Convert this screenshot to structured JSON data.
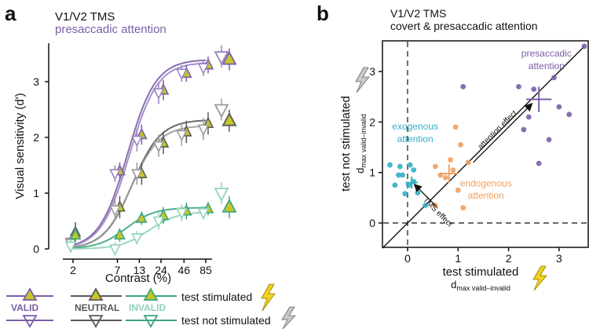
{
  "colors": {
    "purple": "#7B5EA7",
    "purple_light": "#9A84C3",
    "gray": "#5a5a5a",
    "gray_light": "#9a9a9a",
    "green": "#3aa67f",
    "green_light": "#8fd3b6",
    "yellow": "#c6c62a",
    "teal": "#35aec6",
    "orange": "#f0a060",
    "black": "#111111"
  },
  "chart_data": [
    {
      "type": "line",
      "panel_letter": "a",
      "title": "V1/V2 TMS",
      "subtitle": "presaccadic attention",
      "xlabel": "Contrast (%)",
      "ylabel": "Visual sensitivity (d')",
      "x_ticks": [
        "2",
        "7",
        "13",
        "24",
        "46",
        "85"
      ],
      "y_ticks": [
        "0",
        "1",
        "2",
        "3"
      ],
      "ylim": [
        0,
        3.8
      ],
      "x": [
        2,
        7,
        13,
        24,
        46,
        85
      ],
      "series": [
        {
          "name": "valid test stimulated",
          "condition": "valid",
          "stimulated": true,
          "values": [
            0.25,
            1.4,
            2.05,
            2.85,
            3.15,
            3.3
          ],
          "errors": [
            0.18,
            0.15,
            0.18,
            0.18,
            0.15,
            0.15
          ],
          "extra": 3.4
        },
        {
          "name": "valid test not stimulated",
          "condition": "valid",
          "stimulated": false,
          "values": [
            0.12,
            1.35,
            1.95,
            2.8,
            3.15,
            3.25
          ],
          "errors": [
            0.15,
            0.15,
            0.2,
            0.2,
            0.15,
            0.15
          ],
          "extra": 3.45
        },
        {
          "name": "neutral test stimulated",
          "condition": "neutral",
          "stimulated": true,
          "values": [
            0.3,
            0.75,
            1.35,
            1.9,
            2.1,
            2.25
          ],
          "errors": [
            0.18,
            0.2,
            0.2,
            0.2,
            0.2,
            0.2
          ],
          "extra": 2.3
        },
        {
          "name": "neutral test not stimulated",
          "condition": "neutral",
          "stimulated": false,
          "values": [
            0.1,
            0.7,
            1.35,
            1.85,
            2.05,
            2.15
          ],
          "errors": [
            0.15,
            0.2,
            0.2,
            0.2,
            0.2,
            0.2
          ],
          "extra": 2.5
        },
        {
          "name": "invalid test stimulated",
          "condition": "invalid",
          "stimulated": true,
          "values": [
            0.25,
            0.25,
            0.55,
            0.6,
            0.68,
            0.72
          ],
          "errors": [
            0.15,
            0.12,
            0.12,
            0.15,
            0.15,
            0.12
          ],
          "extra": 0.75
        },
        {
          "name": "invalid test not stimulated",
          "condition": "invalid",
          "stimulated": false,
          "values": [
            0.05,
            0.0,
            0.2,
            0.5,
            0.65,
            0.65
          ],
          "errors": [
            0.12,
            0.12,
            0.12,
            0.15,
            0.15,
            0.12
          ],
          "extra": 1.0
        }
      ],
      "legend": {
        "valid": "VALID",
        "neutral": "NEUTRAL",
        "invalid": "INVALID",
        "stimulated": "test stimulated",
        "not_stimulated": "test not stimulated"
      }
    },
    {
      "type": "scatter",
      "panel_letter": "b",
      "title": "V1/V2 TMS",
      "subtitle": "covert & presaccadic attention",
      "xlabel": "test stimulated",
      "xlabel_sub": "d",
      "xlabel_sub_small": "max",
      "xlabel_sub_rest": " valid–invalid",
      "ylabel": "test not stimulated",
      "ylabel_sub": "d",
      "ylabel_sub_small": "max",
      "ylabel_sub_rest": " valid–invalid",
      "x_ticks": [
        "0",
        "1",
        "2",
        "3"
      ],
      "y_ticks": [
        "0",
        "1",
        "2",
        "3"
      ],
      "xlim": [
        -0.5,
        3.5
      ],
      "ylim": [
        -0.5,
        3.5
      ],
      "groups": [
        {
          "name": "exogenous attention",
          "label_line1": "exogenous",
          "label_line2": "attention",
          "color_key": "teal",
          "points": [
            [
              -0.35,
              1.15
            ],
            [
              -0.15,
              1.12
            ],
            [
              0.05,
              1.15
            ],
            [
              -0.18,
              0.95
            ],
            [
              0.12,
              1.05
            ],
            [
              -0.25,
              0.75
            ],
            [
              0.02,
              0.75
            ],
            [
              0.2,
              0.6
            ],
            [
              -0.05,
              0.58
            ],
            [
              0.12,
              0.82
            ],
            [
              0.35,
              0.35
            ],
            [
              -0.1,
              0.95
            ]
          ],
          "mean": [
            0.08,
            0.8
          ],
          "mean_err": [
            0.12,
            0.12
          ]
        },
        {
          "name": "endogenous attention",
          "label_line1": "endogenous",
          "label_line2": "attention",
          "color_key": "orange",
          "points": [
            [
              0.55,
              1.12
            ],
            [
              0.65,
              0.95
            ],
            [
              0.75,
              0.9
            ],
            [
              0.9,
              1.05
            ],
            [
              1.0,
              0.65
            ],
            [
              1.05,
              1.55
            ],
            [
              1.1,
              0.3
            ],
            [
              1.2,
              1.2
            ],
            [
              0.55,
              0.35
            ],
            [
              0.95,
              1.9
            ],
            [
              0.85,
              1.25
            ]
          ],
          "mean": [
            0.82,
            0.98
          ],
          "mean_err": [
            0.18,
            0.18
          ]
        },
        {
          "name": "presaccadic attention",
          "label_line1": "presaccadic",
          "label_line2": "attention",
          "color_key": "purple",
          "points": [
            [
              1.1,
              2.7
            ],
            [
              2.2,
              2.7
            ],
            [
              2.5,
              2.65
            ],
            [
              2.9,
              2.88
            ],
            [
              3.0,
              2.3
            ],
            [
              3.2,
              2.15
            ],
            [
              2.8,
              1.65
            ],
            [
              2.6,
              1.18
            ],
            [
              2.3,
              1.85
            ],
            [
              3.5,
              3.5
            ],
            [
              2.4,
              2.1
            ]
          ],
          "mean": [
            2.6,
            2.45
          ],
          "mean_err": [
            0.25,
            0.25
          ]
        }
      ],
      "annotations": {
        "attention_effect": "attention effect",
        "tms_effect": "TMS effect"
      }
    }
  ]
}
